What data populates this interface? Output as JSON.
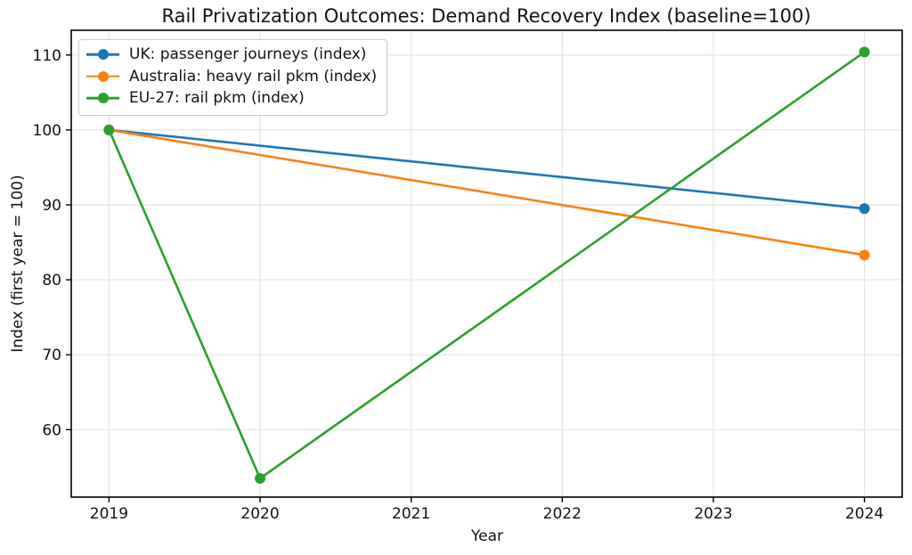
{
  "chart_data": {
    "type": "line",
    "title": "Rail Privatization Outcomes: Demand Recovery Index (baseline=100)",
    "xlabel": "Year",
    "ylabel": "Index (first year = 100)",
    "x_ticks": [
      2019,
      2020,
      2021,
      2022,
      2023,
      2024
    ],
    "y_ticks": [
      60,
      70,
      80,
      90,
      100,
      110
    ],
    "xlim": [
      2018.75,
      2024.25
    ],
    "ylim": [
      51.0,
      113.3
    ],
    "grid": true,
    "legend_position": "upper-left",
    "background_color": "#ffffff",
    "grid_color": "#e4e4e4",
    "spine_color": "#000000",
    "series": [
      {
        "name": "UK: passenger journeys (index)",
        "color": "#1f77b4",
        "x": [
          2019,
          2024
        ],
        "y": [
          100,
          89.5
        ]
      },
      {
        "name": "Australia: heavy rail pkm (index)",
        "color": "#ff7f0e",
        "x": [
          2019,
          2024
        ],
        "y": [
          100,
          83.3
        ]
      },
      {
        "name": "EU-27: rail pkm (index)",
        "color": "#2ca02c",
        "x": [
          2019,
          2020,
          2024
        ],
        "y": [
          100,
          53.5,
          110.4
        ]
      }
    ]
  }
}
